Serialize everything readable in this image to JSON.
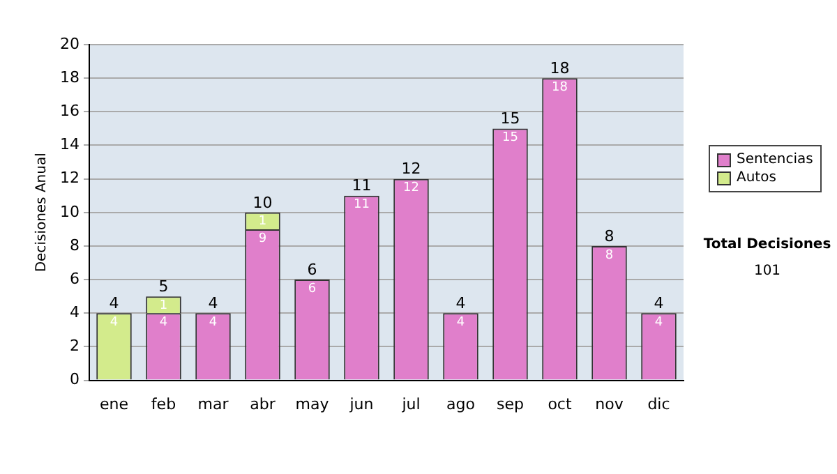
{
  "chart_data": {
    "type": "bar",
    "stacked": true,
    "ylabel": "Decisiones Anual",
    "categories": [
      "ene",
      "feb",
      "mar",
      "abr",
      "may",
      "jun",
      "jul",
      "ago",
      "sep",
      "oct",
      "nov",
      "dic"
    ],
    "series": [
      {
        "name": "Sentencias",
        "color": "#e07fcb",
        "values": [
          0,
          4,
          4,
          9,
          6,
          11,
          12,
          4,
          15,
          18,
          8,
          4
        ],
        "value_labels": [
          null,
          "4",
          "4",
          "9",
          "6",
          "11",
          "12",
          "4",
          "15",
          "18",
          "8",
          "4"
        ]
      },
      {
        "name": "Autos",
        "color": "#d3eb8c",
        "values": [
          4,
          1,
          0,
          1,
          0,
          0,
          0,
          0,
          0,
          0,
          0,
          0
        ],
        "value_labels": [
          "4",
          "1",
          null,
          "1",
          null,
          null,
          null,
          null,
          null,
          null,
          null,
          null
        ]
      }
    ],
    "totals": [
      "4",
      "5",
      "4",
      "10",
      "6",
      "11",
      "12",
      "4",
      "15",
      "18",
      "8",
      "4"
    ],
    "ylim": [
      0,
      20
    ],
    "yticks": [
      0,
      2,
      4,
      6,
      8,
      10,
      12,
      14,
      16,
      18,
      20
    ],
    "grid": "y",
    "legend": "right",
    "annotations": [
      "Total Decisiones",
      "101"
    ]
  }
}
